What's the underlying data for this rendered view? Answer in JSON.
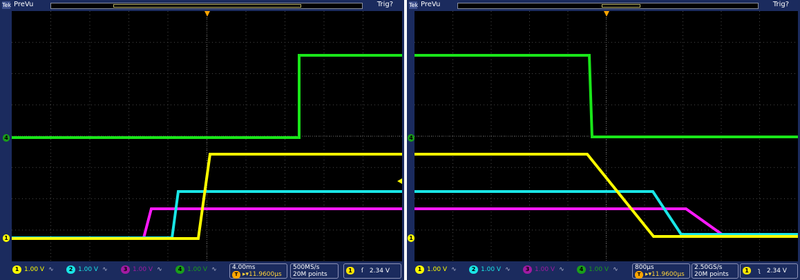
{
  "colors": {
    "ch1": "#ffff00",
    "ch2": "#19e6e6",
    "ch3": "#ff19ff",
    "ch4": "#19e619",
    "grid": "#5a5a5a",
    "marker": "#ffa500"
  },
  "scopes": [
    {
      "run_icon": "Tek",
      "status": "PreVu",
      "trigger_status": "Trig?",
      "channel1": {
        "num": "1",
        "scale": "1.00 V"
      },
      "channel2": {
        "num": "2",
        "scale": "1.00 V"
      },
      "channel3": {
        "num": "3",
        "scale": "1.00 V"
      },
      "channel4": {
        "num": "4",
        "scale": "1.00 V"
      },
      "bandwidth_icon": "Bw-limit",
      "horizontal": {
        "scale": "4.00ms",
        "position": "11.9600µs",
        "pos_icon": "T",
        "pos_arrows": "▸▾"
      },
      "acquisition": {
        "rate": "500MS/s",
        "record": "20M points"
      },
      "trigger": {
        "source": "1",
        "slope": "rising",
        "slope_glyph": "ſ",
        "level": "2.34 V"
      },
      "markers": {
        "ch4_ground": "4",
        "ch1_ground": "1",
        "trigger_pos": "T"
      }
    },
    {
      "run_icon": "Tek",
      "status": "PreVu",
      "trigger_status": "Trig?",
      "channel1": {
        "num": "1",
        "scale": "1.00 V"
      },
      "channel2": {
        "num": "2",
        "scale": "1.00 V"
      },
      "channel3": {
        "num": "3",
        "scale": "1.00 V"
      },
      "channel4": {
        "num": "4",
        "scale": "1.00 V"
      },
      "bandwidth_icon": "Bw-limit",
      "horizontal": {
        "scale": "800µs",
        "position": "11.9600µs",
        "pos_icon": "T",
        "pos_arrows": "▸▾"
      },
      "acquisition": {
        "rate": "2.50GS/s",
        "record": "20M points"
      },
      "trigger": {
        "source": "1",
        "slope": "falling",
        "slope_glyph": "ʅ",
        "level": "2.34 V"
      },
      "markers": {
        "ch4_ground": "4",
        "ch1_ground": "1",
        "trigger_pos": "T"
      }
    }
  ]
}
